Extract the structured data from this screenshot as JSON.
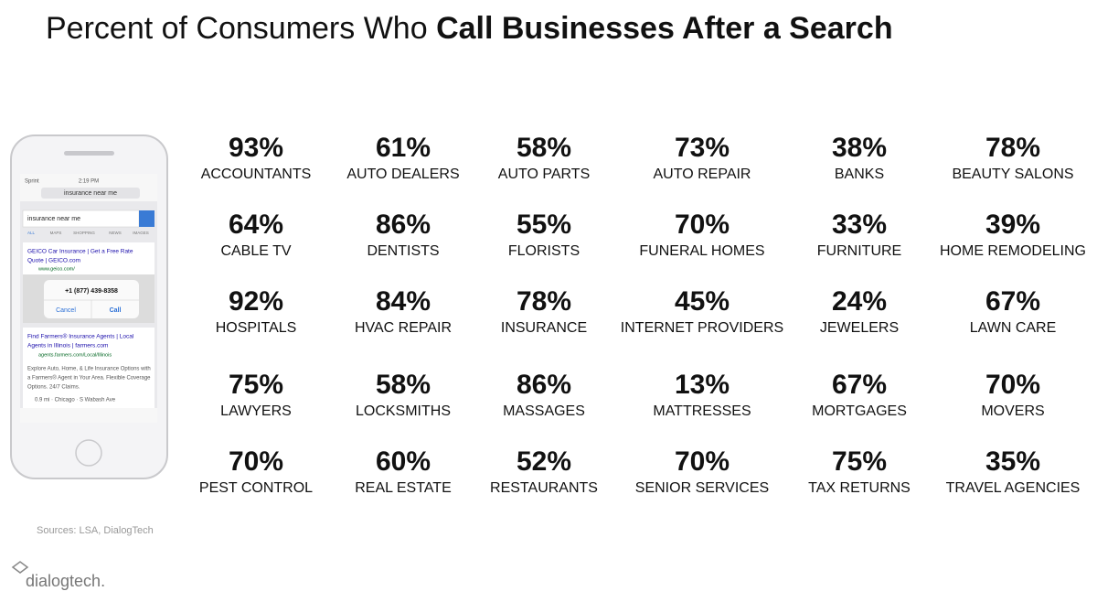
{
  "title": {
    "regular": "Percent of Consumers Who ",
    "bold": "Call Businesses After a Search"
  },
  "stats": [
    {
      "value": "93%",
      "label": "ACCOUNTANTS"
    },
    {
      "value": "61%",
      "label": "AUTO DEALERS"
    },
    {
      "value": "58%",
      "label": "AUTO PARTS"
    },
    {
      "value": "73%",
      "label": "AUTO REPAIR"
    },
    {
      "value": "38%",
      "label": "BANKS"
    },
    {
      "value": "78%",
      "label": "BEAUTY SALONS"
    },
    {
      "value": "64%",
      "label": "CABLE TV"
    },
    {
      "value": "86%",
      "label": "DENTISTS"
    },
    {
      "value": "55%",
      "label": "FLORISTS"
    },
    {
      "value": "70%",
      "label": "FUNERAL HOMES"
    },
    {
      "value": "33%",
      "label": "FURNITURE"
    },
    {
      "value": "39%",
      "label": "HOME REMODELING"
    },
    {
      "value": "92%",
      "label": "HOSPITALS"
    },
    {
      "value": "84%",
      "label": "HVAC REPAIR"
    },
    {
      "value": "78%",
      "label": "INSURANCE"
    },
    {
      "value": "45%",
      "label": "INTERNET PROVIDERS"
    },
    {
      "value": "24%",
      "label": "JEWELERS"
    },
    {
      "value": "67%",
      "label": "LAWN CARE"
    },
    {
      "value": "75%",
      "label": "LAWYERS"
    },
    {
      "value": "58%",
      "label": "LOCKSMITHS"
    },
    {
      "value": "86%",
      "label": "MASSAGES"
    },
    {
      "value": "13%",
      "label": "MATTRESSES"
    },
    {
      "value": "67%",
      "label": "MORTGAGES"
    },
    {
      "value": "70%",
      "label": "MOVERS"
    },
    {
      "value": "70%",
      "label": "PEST CONTROL"
    },
    {
      "value": "60%",
      "label": "REAL ESTATE"
    },
    {
      "value": "52%",
      "label": "RESTAURANTS"
    },
    {
      "value": "70%",
      "label": "SENIOR SERVICES"
    },
    {
      "value": "75%",
      "label": "TAX RETURNS"
    },
    {
      "value": "35%",
      "label": "TRAVEL AGENCIES"
    }
  ],
  "phone": {
    "carrier": "Sprint",
    "time": "2:19 PM",
    "url": "insurance near me",
    "search": "insurance near me",
    "tabs": [
      "ALL",
      "MAPS",
      "SHOPPING",
      "NEWS",
      "IMAGES"
    ],
    "ad1": {
      "lines": [
        "GEICO Car Insurance | Get a Free Rate",
        "Quote | GEICO.com"
      ],
      "url": "www.geico.com/"
    },
    "dialog": {
      "number": "+1 (877) 439-8358",
      "cancel": "Cancel",
      "call": "Call"
    },
    "ad2": {
      "lines": [
        "Find Farmers® Insurance Agents | Local",
        "Agents in Illinois | farmers.com"
      ],
      "url": "agents.farmers.com/Local/Illinois"
    },
    "snippet": [
      "Explore Auto, Home, & Life Insurance Options with",
      "a Farmers® Agent in Your Area. Flexible Coverage",
      "Options. 24/7 Claims."
    ],
    "location": "0.9 mi · Chicago · S Wabash Ave"
  },
  "footer": {
    "sources": "Sources: LSA, DialogTech",
    "logo": "dialogtech."
  }
}
